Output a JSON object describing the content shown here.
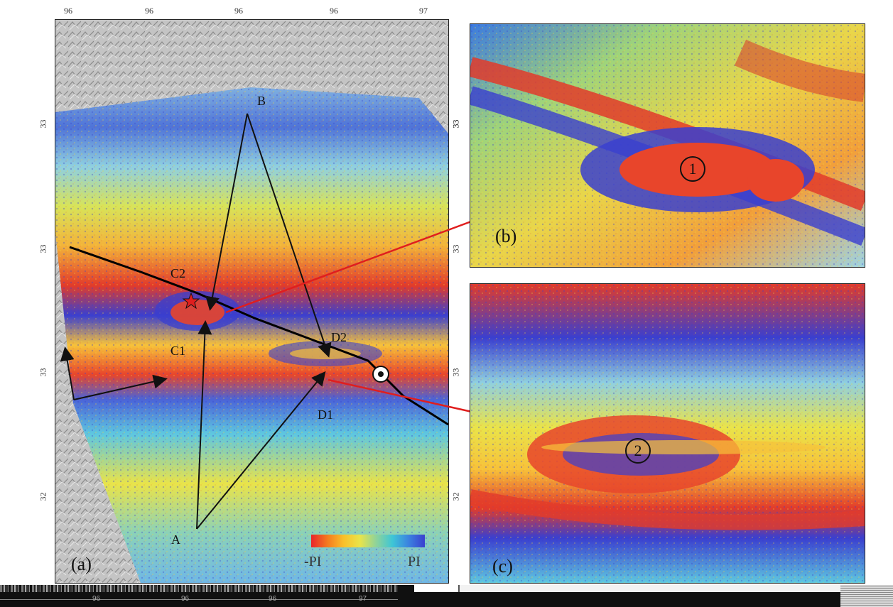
{
  "panel_a": {
    "top_ticks": [
      "96",
      "96",
      "96",
      "96",
      "97"
    ],
    "left_ticks": [
      "33",
      "33",
      "33",
      "32"
    ],
    "right_ticks": [
      "33",
      "33",
      "33",
      "32"
    ],
    "labels": {
      "A": "A",
      "B": "B",
      "C1": "C1",
      "C2": "C2",
      "D1": "D1",
      "D2": "D2"
    },
    "panel_label": "(a)",
    "colorbar": {
      "min_label": "-PI",
      "max_label": "PI",
      "colors": [
        "#e8242b",
        "#f57a1f",
        "#f9c02a",
        "#e9e44a",
        "#8fd39a",
        "#3ec6d6",
        "#3b82e0",
        "#3a3fcf"
      ]
    }
  },
  "panel_b": {
    "panel_label": "(b)",
    "marker": "1",
    "right_ticks": [
      "33",
      "33"
    ]
  },
  "panel_c": {
    "panel_label": "(c)",
    "marker": "2",
    "right_ticks": [
      "33"
    ]
  },
  "bottom_strip": {
    "ticks": [
      "96",
      "96",
      "96",
      "97"
    ]
  },
  "colors": {
    "arrow_red": "#e01e1e",
    "arrow_black": "#111111",
    "fault_line": "#000000"
  }
}
